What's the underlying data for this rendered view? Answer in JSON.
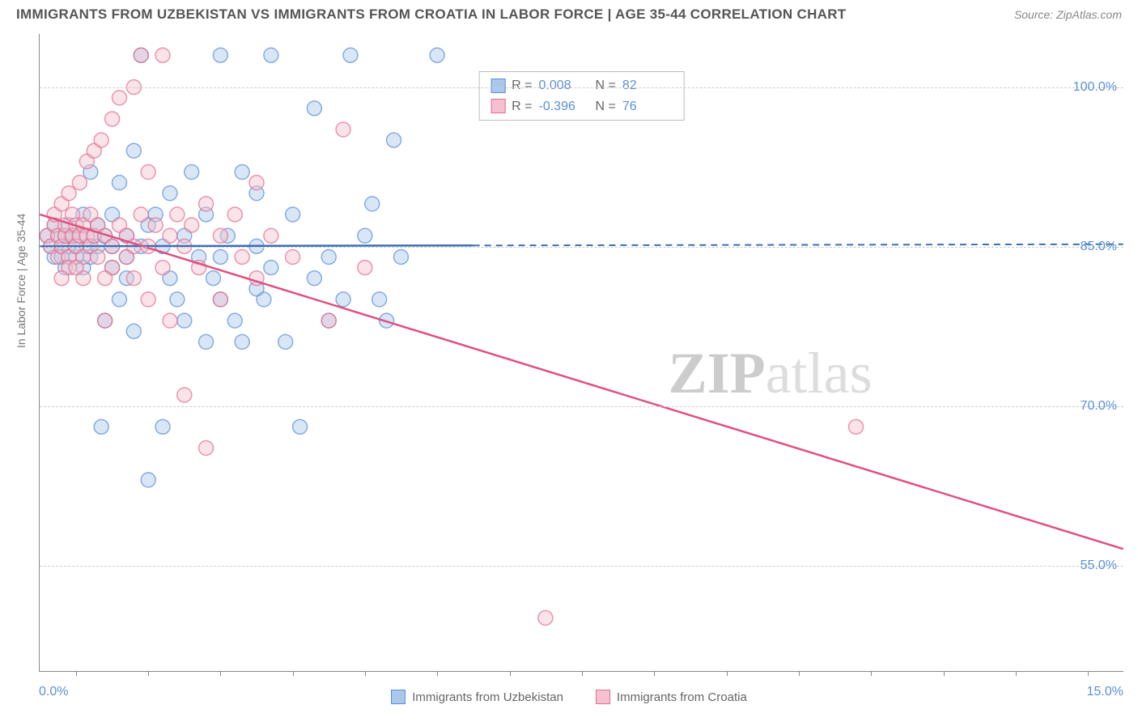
{
  "header": {
    "title": "IMMIGRANTS FROM UZBEKISTAN VS IMMIGRANTS FROM CROATIA IN LABOR FORCE | AGE 35-44 CORRELATION CHART",
    "source": "Source: ZipAtlas.com"
  },
  "chart": {
    "type": "scatter",
    "ylabel": "In Labor Force | Age 35-44",
    "xlim": [
      0,
      15
    ],
    "ylim": [
      45,
      105
    ],
    "yticks": [
      55,
      70,
      85,
      100
    ],
    "ytick_labels": [
      "55.0%",
      "70.0%",
      "85.0%",
      "100.0%"
    ],
    "xtick_left": "0.0%",
    "xtick_right": "15.0%",
    "xtick_positions": [
      0.5,
      1.5,
      2.5,
      3.5,
      4.5,
      5.5,
      6.5,
      7.5,
      8.5,
      9.5,
      10.5,
      11.5,
      12.5,
      13.5,
      14.5
    ],
    "background_color": "#ffffff",
    "grid_color": "#cccccc",
    "marker_radius": 9,
    "marker_opacity": 0.45,
    "series": [
      {
        "name": "Immigrants from Uzbekistan",
        "color_fill": "#a9c8ec",
        "color_stroke": "#5b8fd6",
        "line_color": "#3d6fb5",
        "r": "0.008",
        "n": "82",
        "trend": {
          "x1": 0,
          "y1": 85.0,
          "x2": 15,
          "y2": 85.2,
          "solid_until_x": 6.0
        },
        "points": [
          [
            0.1,
            86
          ],
          [
            0.15,
            85
          ],
          [
            0.2,
            87
          ],
          [
            0.2,
            84
          ],
          [
            0.25,
            86
          ],
          [
            0.3,
            85
          ],
          [
            0.3,
            84
          ],
          [
            0.35,
            86
          ],
          [
            0.35,
            83
          ],
          [
            0.4,
            85
          ],
          [
            0.4,
            87
          ],
          [
            0.45,
            86
          ],
          [
            0.5,
            84
          ],
          [
            0.5,
            85
          ],
          [
            0.55,
            86
          ],
          [
            0.6,
            83
          ],
          [
            0.6,
            88
          ],
          [
            0.65,
            85
          ],
          [
            0.7,
            84
          ],
          [
            0.7,
            92
          ],
          [
            0.75,
            86
          ],
          [
            0.8,
            85
          ],
          [
            0.8,
            87
          ],
          [
            0.85,
            68
          ],
          [
            0.9,
            86
          ],
          [
            0.9,
            78
          ],
          [
            1.0,
            85
          ],
          [
            1.0,
            83
          ],
          [
            1.0,
            88
          ],
          [
            1.1,
            91
          ],
          [
            1.1,
            80
          ],
          [
            1.2,
            86
          ],
          [
            1.2,
            84
          ],
          [
            1.3,
            94
          ],
          [
            1.3,
            77
          ],
          [
            1.4,
            85
          ],
          [
            1.4,
            103
          ],
          [
            1.5,
            63
          ],
          [
            1.5,
            87
          ],
          [
            1.6,
            88
          ],
          [
            1.7,
            68
          ],
          [
            1.7,
            85
          ],
          [
            1.8,
            82
          ],
          [
            1.8,
            90
          ],
          [
            1.9,
            80
          ],
          [
            2.0,
            86
          ],
          [
            2.0,
            78
          ],
          [
            2.1,
            92
          ],
          [
            2.2,
            84
          ],
          [
            2.3,
            76
          ],
          [
            2.3,
            88
          ],
          [
            2.4,
            82
          ],
          [
            2.5,
            103
          ],
          [
            2.5,
            80
          ],
          [
            2.6,
            86
          ],
          [
            2.7,
            78
          ],
          [
            2.8,
            92
          ],
          [
            2.8,
            76
          ],
          [
            3.0,
            85
          ],
          [
            3.0,
            90
          ],
          [
            3.1,
            80
          ],
          [
            3.2,
            103
          ],
          [
            3.2,
            83
          ],
          [
            3.4,
            76
          ],
          [
            3.5,
            88
          ],
          [
            3.6,
            68
          ],
          [
            3.8,
            98
          ],
          [
            3.8,
            82
          ],
          [
            4.0,
            84
          ],
          [
            4.0,
            78
          ],
          [
            4.2,
            80
          ],
          [
            4.3,
            103
          ],
          [
            4.5,
            86
          ],
          [
            4.6,
            89
          ],
          [
            4.7,
            80
          ],
          [
            4.8,
            78
          ],
          [
            5.0,
            84
          ],
          [
            5.5,
            103
          ],
          [
            4.9,
            95
          ],
          [
            3.0,
            81
          ],
          [
            2.5,
            84
          ],
          [
            1.2,
            82
          ]
        ]
      },
      {
        "name": "Immigrants from Croatia",
        "color_fill": "#f5c0cf",
        "color_stroke": "#e36d8f",
        "line_color": "#e05080",
        "r": "-0.396",
        "n": "76",
        "trend": {
          "x1": 0,
          "y1": 88.0,
          "x2": 15,
          "y2": 56.5,
          "solid_until_x": 15
        },
        "points": [
          [
            0.1,
            86
          ],
          [
            0.15,
            85
          ],
          [
            0.2,
            87
          ],
          [
            0.2,
            88
          ],
          [
            0.25,
            86
          ],
          [
            0.25,
            84
          ],
          [
            0.3,
            89
          ],
          [
            0.3,
            85
          ],
          [
            0.35,
            86
          ],
          [
            0.35,
            87
          ],
          [
            0.4,
            84
          ],
          [
            0.4,
            90
          ],
          [
            0.45,
            86
          ],
          [
            0.45,
            88
          ],
          [
            0.5,
            85
          ],
          [
            0.5,
            87
          ],
          [
            0.55,
            86
          ],
          [
            0.55,
            91
          ],
          [
            0.6,
            84
          ],
          [
            0.6,
            87
          ],
          [
            0.65,
            86
          ],
          [
            0.65,
            93
          ],
          [
            0.7,
            85
          ],
          [
            0.7,
            88
          ],
          [
            0.75,
            86
          ],
          [
            0.75,
            94
          ],
          [
            0.8,
            84
          ],
          [
            0.8,
            87
          ],
          [
            0.85,
            95
          ],
          [
            0.9,
            86
          ],
          [
            0.9,
            78
          ],
          [
            1.0,
            85
          ],
          [
            1.0,
            97
          ],
          [
            1.0,
            83
          ],
          [
            1.1,
            87
          ],
          [
            1.1,
            99
          ],
          [
            1.2,
            84
          ],
          [
            1.2,
            86
          ],
          [
            1.3,
            100
          ],
          [
            1.3,
            82
          ],
          [
            1.4,
            88
          ],
          [
            1.4,
            103
          ],
          [
            1.5,
            85
          ],
          [
            1.5,
            80
          ],
          [
            1.6,
            87
          ],
          [
            1.7,
            103
          ],
          [
            1.7,
            83
          ],
          [
            1.8,
            86
          ],
          [
            1.8,
            78
          ],
          [
            1.9,
            88
          ],
          [
            2.0,
            85
          ],
          [
            2.0,
            71
          ],
          [
            2.1,
            87
          ],
          [
            2.2,
            83
          ],
          [
            2.3,
            89
          ],
          [
            2.3,
            66
          ],
          [
            2.5,
            86
          ],
          [
            2.5,
            80
          ],
          [
            2.7,
            88
          ],
          [
            2.8,
            84
          ],
          [
            3.0,
            82
          ],
          [
            3.0,
            91
          ],
          [
            3.2,
            86
          ],
          [
            3.5,
            84
          ],
          [
            4.0,
            78
          ],
          [
            4.2,
            96
          ],
          [
            4.5,
            83
          ],
          [
            7.0,
            50
          ],
          [
            11.3,
            68
          ],
          [
            1.5,
            92
          ],
          [
            0.9,
            82
          ],
          [
            1.3,
            85
          ],
          [
            0.6,
            82
          ],
          [
            0.4,
            83
          ],
          [
            0.3,
            82
          ],
          [
            0.5,
            83
          ]
        ]
      }
    ],
    "watermark": {
      "prefix": "ZIP",
      "suffix": "atlas"
    }
  },
  "legend": {
    "series1_label": "Immigrants from Uzbekistan",
    "series2_label": "Immigrants from Croatia"
  }
}
